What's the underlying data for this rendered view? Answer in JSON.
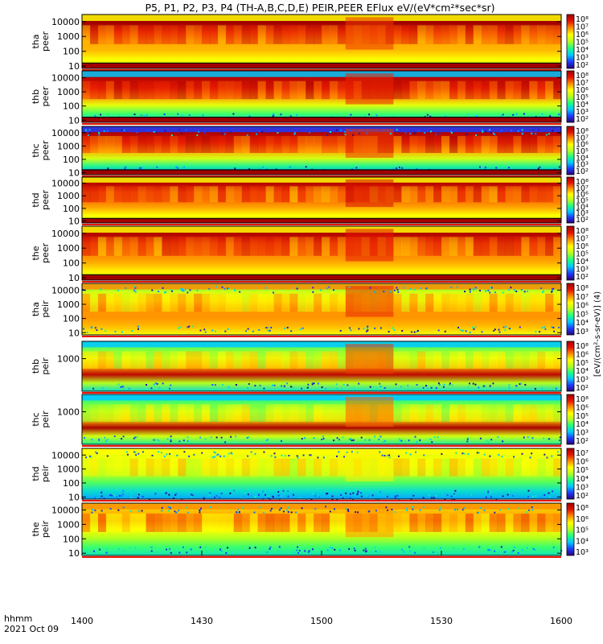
{
  "chart_data": {
    "type": "heatmap",
    "title": "P5, P1, P2, P3, P4 (TH-A,B,C,D,E) PEIR,PEER EFlux eV/(eV*cm²*sec*sr)",
    "x_axis": {
      "corner_label_1": "hhmm",
      "corner_label_2": "2021 Oct 09",
      "tick_labels": [
        "1400",
        "1430",
        "1500",
        "1530",
        "1600"
      ],
      "range": [
        "14:00",
        "16:00"
      ]
    },
    "colorbar_label": "[eV/(cm²-s-sr-eV)] (4)",
    "colormap": [
      "#2a0078",
      "#1c3cff",
      "#00c8ff",
      "#1eff7e",
      "#b4ff1e",
      "#ffff00",
      "#ff8c00",
      "#e61400",
      "#a00000"
    ],
    "panels": [
      {
        "id": "tha-peer",
        "probe": "tha",
        "species": "peer",
        "ylog": true,
        "ylim": [
          7,
          30000
        ],
        "ytick_labels": [
          "10000",
          "1000",
          "100",
          "10"
        ],
        "colorbar_ticks": [
          "10⁸",
          "10⁷",
          "10⁶",
          "10⁵",
          "10⁴",
          "10³",
          "10²"
        ],
        "profile": [
          1.0,
          1.0,
          0.82,
          0.72,
          0.7,
          0.62,
          0.55
        ],
        "top_fill": "#ffff00",
        "bottom_band": "#a00000",
        "noise_rows": 0
      },
      {
        "id": "thb-peer",
        "probe": "thb",
        "species": "peer",
        "ylog": true,
        "ylim": [
          7,
          30000
        ],
        "ytick_labels": [
          "10000",
          "1000",
          "100",
          "10"
        ],
        "colorbar_ticks": [
          "10⁸",
          "10⁷",
          "10⁶",
          "10⁵",
          "10⁴",
          "10³",
          "10²"
        ],
        "profile": [
          1.0,
          0.95,
          0.86,
          0.74,
          0.58,
          0.4,
          0.28
        ],
        "top_fill": "#00c8ff",
        "bottom_band": "#a00000",
        "noise_rows": 1
      },
      {
        "id": "thc-peer",
        "probe": "thc",
        "species": "peer",
        "ylog": true,
        "ylim": [
          7,
          30000
        ],
        "ytick_labels": [
          "10000",
          "1000",
          "100",
          "10"
        ],
        "colorbar_ticks": [
          "10⁸",
          "10⁷",
          "10⁶",
          "10⁵",
          "10⁴",
          "10³",
          "10²"
        ],
        "profile": [
          1.0,
          0.96,
          0.85,
          0.72,
          0.55,
          0.35,
          0.18
        ],
        "top_fill": "#1c3cff",
        "bottom_band": "#a00000",
        "noise_rows": 2
      },
      {
        "id": "thd-peer",
        "probe": "thd",
        "species": "peer",
        "ylog": true,
        "ylim": [
          7,
          30000
        ],
        "ytick_labels": [
          "10000",
          "1000",
          "100",
          "10"
        ],
        "colorbar_ticks": [
          "10⁸",
          "10⁷",
          "10⁶",
          "10⁵",
          "10⁴",
          "10³",
          "10²"
        ],
        "profile": [
          1.0,
          0.95,
          0.8,
          0.78,
          0.72,
          0.62,
          0.55
        ],
        "top_fill": "#ffff00",
        "bottom_band": "#a00000",
        "noise_rows": 0
      },
      {
        "id": "the-peer",
        "probe": "the",
        "species": "peer",
        "ylog": true,
        "ylim": [
          7,
          30000
        ],
        "ytick_labels": [
          "10000",
          "1000",
          "100",
          "10"
        ],
        "colorbar_ticks": [
          "10⁸",
          "10⁷",
          "10⁶",
          "10⁵",
          "10⁴",
          "10³",
          "10²"
        ],
        "profile": [
          1.0,
          0.96,
          0.8,
          0.76,
          0.72,
          0.64,
          0.56
        ],
        "top_fill": "#ffff00",
        "bottom_band": "#a00000",
        "noise_rows": 0
      },
      {
        "id": "tha-peir",
        "probe": "tha",
        "species": "peir",
        "ylog": true,
        "ylim": [
          7,
          30000
        ],
        "ytick_labels": [
          "10000",
          "1000",
          "100",
          "10"
        ],
        "colorbar_ticks": [
          "10⁸",
          "10⁷",
          "10⁶",
          "10⁵",
          "10⁴",
          "10³"
        ],
        "profile": [
          0.4,
          0.55,
          0.66,
          0.74,
          0.74,
          0.7,
          0.62
        ],
        "top_fill": "#ff8c00",
        "bottom_band": null,
        "noise_rows": 2
      },
      {
        "id": "thb-peir",
        "probe": "thb",
        "species": "peir",
        "ylog": true,
        "ylim": [
          20,
          8000
        ],
        "ytick_labels": [
          "1000"
        ],
        "colorbar_ticks": [
          "10⁸",
          "10⁶",
          "10⁵",
          "10⁴",
          "10³",
          "10²"
        ],
        "profile": [
          0.35,
          0.45,
          0.58,
          0.72,
          0.95,
          0.5,
          0.3
        ],
        "top_fill": "#00c8ff",
        "bottom_band": null,
        "noise_rows": 1
      },
      {
        "id": "thc-peir",
        "probe": "thc",
        "species": "peir",
        "ylog": true,
        "ylim": [
          20,
          8000
        ],
        "ytick_labels": [
          "1000"
        ],
        "colorbar_ticks": [
          "10⁸",
          "10⁶",
          "10⁵",
          "10⁴",
          "10³",
          "10²"
        ],
        "profile": [
          0.3,
          0.42,
          0.55,
          0.68,
          0.98,
          0.55,
          0.35
        ],
        "top_fill": "#00c8ff",
        "bottom_band": null,
        "noise_rows": 1
      },
      {
        "id": "thd-peir",
        "probe": "thd",
        "species": "peir",
        "ylog": true,
        "ylim": [
          7,
          30000
        ],
        "ytick_labels": [
          "10000",
          "1000",
          "100",
          "10"
        ],
        "colorbar_ticks": [
          "10⁷",
          "10⁶",
          "10⁵",
          "10⁴",
          "10³",
          "10²"
        ],
        "profile": [
          0.55,
          0.6,
          0.6,
          0.52,
          0.42,
          0.3,
          0.22
        ],
        "top_fill": "#ffff00",
        "bottom_band": null,
        "noise_rows": 3
      },
      {
        "id": "the-peir",
        "probe": "the",
        "species": "peir",
        "ylog": true,
        "ylim": [
          7,
          30000
        ],
        "ytick_labels": [
          "10000",
          "1000",
          "100",
          "10"
        ],
        "colorbar_ticks": [
          "10⁸",
          "10⁶",
          "10⁵",
          "10⁴",
          "10³"
        ],
        "profile": [
          0.55,
          0.7,
          0.72,
          0.62,
          0.5,
          0.4,
          0.32
        ],
        "top_fill": "#ff8c00",
        "bottom_band": null,
        "noise_rows": 2
      }
    ]
  }
}
